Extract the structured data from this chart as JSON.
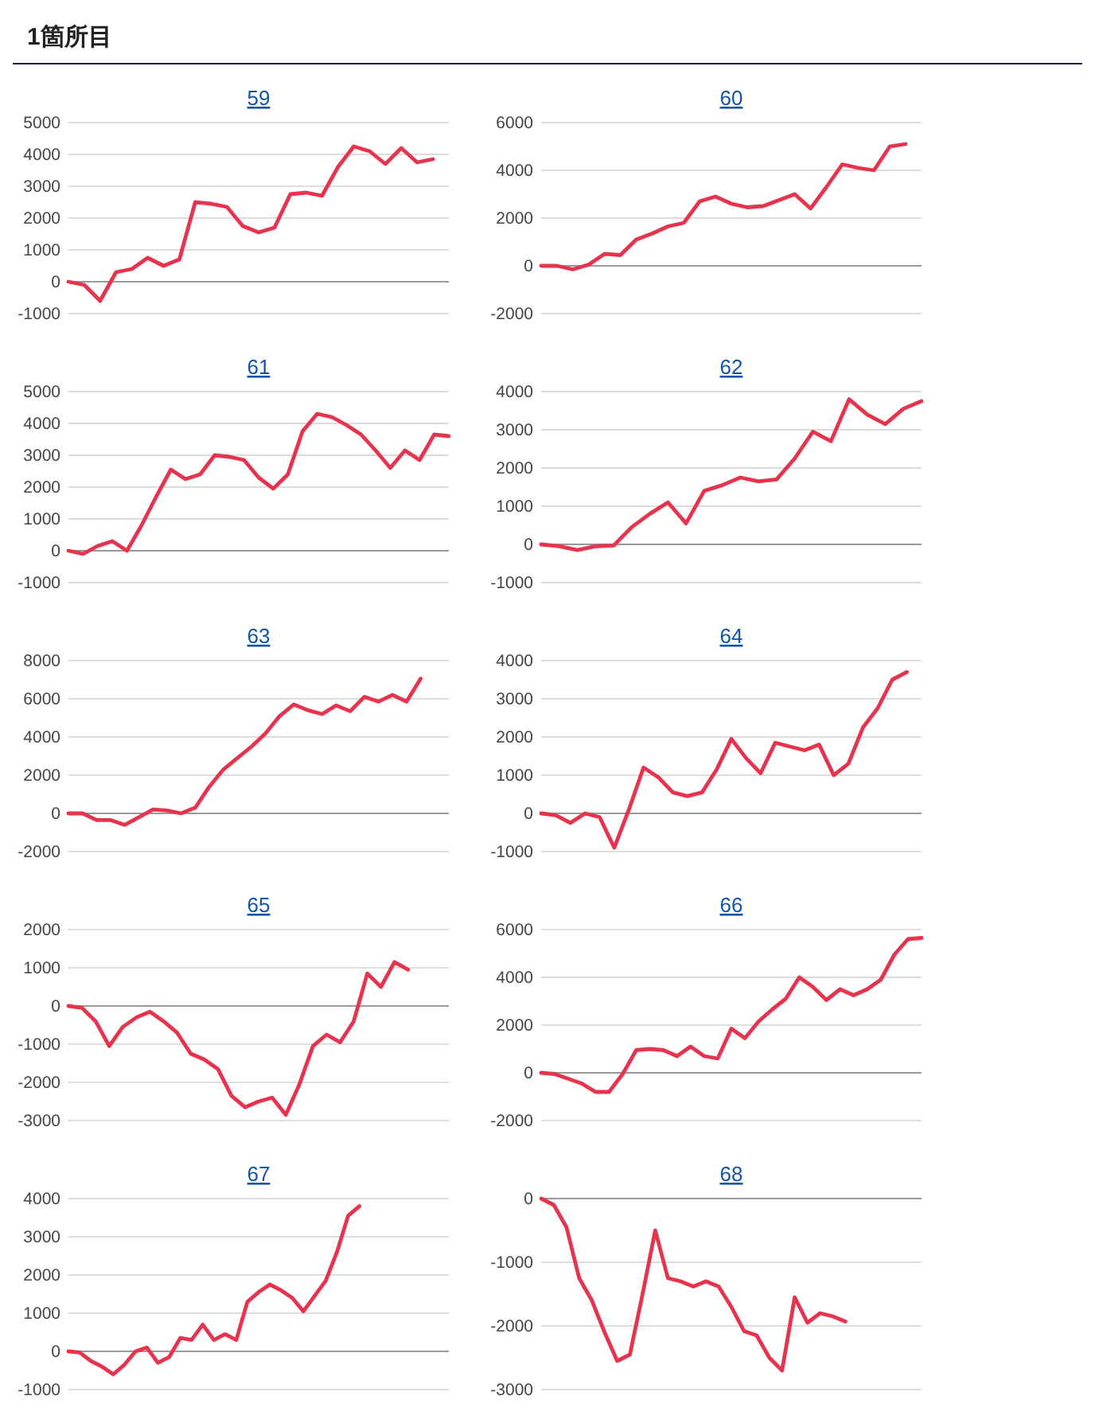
{
  "chart_data": [
    {
      "type": "other",
      "title": "1箇所目"
    },
    {
      "type": "line",
      "title": "59",
      "categories": [
        null,
        null,
        null,
        null,
        null,
        null,
        null,
        null,
        null,
        null,
        null,
        null,
        null,
        null,
        null,
        null,
        null,
        null,
        null,
        null,
        null,
        null,
        null,
        null,
        null
      ],
      "series": [
        {
          "color": "#e8334f",
          "values": [
            0,
            -100,
            -600,
            300,
            400,
            750,
            500,
            700,
            2500,
            2450,
            2350,
            1750,
            1550,
            1700,
            2750,
            2800,
            2700,
            3600,
            4250,
            4100,
            3700,
            4200,
            3750,
            3850,
            null
          ]
        }
      ],
      "ylim": [
        -1000,
        5000
      ],
      "yticks": [
        -1000,
        0,
        1000,
        2000,
        3000,
        4000,
        5000
      ],
      "grid": "y",
      "tick_labels": "y"
    },
    {
      "type": "line",
      "title": "60",
      "categories": [
        null,
        null,
        null,
        null,
        null,
        null,
        null,
        null,
        null,
        null,
        null,
        null,
        null,
        null,
        null,
        null,
        null,
        null,
        null,
        null,
        null,
        null,
        null,
        null,
        null
      ],
      "series": [
        {
          "color": "#e8334f",
          "values": [
            0,
            0,
            -150,
            50,
            500,
            450,
            1100,
            1350,
            1650,
            1800,
            2700,
            2900,
            2600,
            2450,
            2500,
            2750,
            3000,
            2400,
            3300,
            4250,
            4100,
            4000,
            5000,
            5100,
            null
          ]
        }
      ],
      "ylim": [
        -2000,
        6000
      ],
      "yticks": [
        -2000,
        0,
        2000,
        4000,
        6000
      ],
      "grid": "y",
      "tick_labels": "y"
    },
    {
      "type": "line",
      "title": "61",
      "categories": [
        null,
        null,
        null,
        null,
        null,
        null,
        null,
        null,
        null,
        null,
        null,
        null,
        null,
        null,
        null,
        null,
        null,
        null,
        null,
        null,
        null,
        null,
        null,
        null,
        null,
        null,
        null
      ],
      "series": [
        {
          "color": "#e8334f",
          "values": [
            0,
            -100,
            150,
            300,
            0,
            800,
            1700,
            2550,
            2250,
            2400,
            3000,
            2950,
            2850,
            2300,
            1950,
            2400,
            3750,
            4300,
            4200,
            3950,
            3650,
            3150,
            2600,
            3150,
            2850,
            3650,
            3600
          ]
        }
      ],
      "ylim": [
        -1000,
        5000
      ],
      "yticks": [
        -1000,
        0,
        1000,
        2000,
        3000,
        4000,
        5000
      ],
      "grid": "y",
      "tick_labels": "y"
    },
    {
      "type": "line",
      "title": "62",
      "categories": [
        null,
        null,
        null,
        null,
        null,
        null,
        null,
        null,
        null,
        null,
        null,
        null,
        null,
        null,
        null,
        null,
        null,
        null,
        null,
        null,
        null,
        null
      ],
      "series": [
        {
          "color": "#e8334f",
          "values": [
            0,
            -50,
            -150,
            -50,
            -30,
            450,
            800,
            1100,
            550,
            1400,
            1550,
            1750,
            1650,
            1700,
            2250,
            2950,
            2700,
            3800,
            3400,
            3150,
            3550,
            3750
          ]
        }
      ],
      "ylim": [
        -1000,
        4000
      ],
      "yticks": [
        -1000,
        0,
        1000,
        2000,
        3000,
        4000
      ],
      "grid": "y",
      "tick_labels": "y"
    },
    {
      "type": "line",
      "title": "63",
      "categories": [
        null,
        null,
        null,
        null,
        null,
        null,
        null,
        null,
        null,
        null,
        null,
        null,
        null,
        null,
        null,
        null,
        null,
        null,
        null,
        null,
        null,
        null,
        null,
        null,
        null,
        null,
        null,
        null
      ],
      "series": [
        {
          "color": "#e8334f",
          "values": [
            0,
            0,
            -350,
            -350,
            -600,
            -200,
            200,
            150,
            0,
            300,
            1400,
            2300,
            2900,
            3500,
            4200,
            5100,
            5700,
            5400,
            5200,
            5650,
            5350,
            6100,
            5850,
            6200,
            5850,
            7050,
            null,
            null
          ]
        }
      ],
      "ylim": [
        -2000,
        8000
      ],
      "yticks": [
        -2000,
        0,
        2000,
        4000,
        6000,
        8000
      ],
      "grid": "y",
      "tick_labels": "y"
    },
    {
      "type": "line",
      "title": "64",
      "categories": [
        null,
        null,
        null,
        null,
        null,
        null,
        null,
        null,
        null,
        null,
        null,
        null,
        null,
        null,
        null,
        null,
        null,
        null,
        null,
        null,
        null,
        null,
        null,
        null,
        null,
        null,
        null
      ],
      "series": [
        {
          "color": "#e8334f",
          "values": [
            0,
            -50,
            -250,
            0,
            -100,
            -900,
            100,
            1200,
            950,
            550,
            450,
            550,
            1150,
            1950,
            1450,
            1050,
            1850,
            1750,
            1650,
            1800,
            1000,
            1300,
            2250,
            2750,
            3500,
            3700,
            null
          ]
        }
      ],
      "ylim": [
        -1000,
        4000
      ],
      "yticks": [
        -1000,
        0,
        1000,
        2000,
        3000,
        4000
      ],
      "grid": "y",
      "tick_labels": "y"
    },
    {
      "type": "line",
      "title": "65",
      "categories": [
        null,
        null,
        null,
        null,
        null,
        null,
        null,
        null,
        null,
        null,
        null,
        null,
        null,
        null,
        null,
        null,
        null,
        null,
        null,
        null,
        null,
        null,
        null,
        null,
        null,
        null,
        null,
        null,
        null
      ],
      "series": [
        {
          "color": "#e8334f",
          "values": [
            0,
            -50,
            -400,
            -1050,
            -550,
            -300,
            -150,
            -400,
            -700,
            -1250,
            -1400,
            -1650,
            -2350,
            -2650,
            -2500,
            -2400,
            -2850,
            -2050,
            -1050,
            -750,
            -950,
            -400,
            850,
            500,
            1150,
            950,
            null,
            null,
            null
          ]
        }
      ],
      "ylim": [
        -3000,
        2000
      ],
      "yticks": [
        -3000,
        -2000,
        -1000,
        0,
        1000,
        2000
      ],
      "grid": "y",
      "tick_labels": "y"
    },
    {
      "type": "line",
      "title": "66",
      "categories": [
        null,
        null,
        null,
        null,
        null,
        null,
        null,
        null,
        null,
        null,
        null,
        null,
        null,
        null,
        null,
        null,
        null,
        null,
        null,
        null,
        null,
        null,
        null,
        null,
        null,
        null,
        null,
        null,
        null
      ],
      "series": [
        {
          "color": "#e8334f",
          "values": [
            0,
            -50,
            -250,
            -450,
            -800,
            -800,
            -50,
            950,
            1000,
            950,
            700,
            1100,
            700,
            600,
            1850,
            1450,
            2150,
            2650,
            3100,
            4000,
            3600,
            3050,
            3500,
            3250,
            3500,
            3900,
            4950,
            5600,
            5650
          ]
        }
      ],
      "ylim": [
        -2000,
        6000
      ],
      "yticks": [
        -2000,
        0,
        2000,
        4000,
        6000
      ],
      "grid": "y",
      "tick_labels": "y"
    },
    {
      "type": "line",
      "title": "67",
      "categories": [
        null,
        null,
        null,
        null,
        null,
        null,
        null,
        null,
        null,
        null,
        null,
        null,
        null,
        null,
        null,
        null,
        null,
        null,
        null,
        null,
        null,
        null,
        null,
        null,
        null,
        null,
        null,
        null,
        null,
        null,
        null,
        null,
        null,
        null,
        null
      ],
      "series": [
        {
          "color": "#e8334f",
          "values": [
            0,
            -30,
            -250,
            -400,
            -600,
            -350,
            0,
            100,
            -300,
            -150,
            350,
            300,
            700,
            300,
            450,
            300,
            1300,
            1550,
            1750,
            1600,
            1400,
            1050,
            1450,
            1850,
            2600,
            3550,
            3800,
            null,
            null,
            null,
            null,
            null,
            null,
            null,
            null
          ]
        }
      ],
      "ylim": [
        -1000,
        4000
      ],
      "yticks": [
        -1000,
        0,
        1000,
        2000,
        3000,
        4000
      ],
      "grid": "y",
      "tick_labels": "y"
    },
    {
      "type": "line",
      "title": "68",
      "categories": [
        null,
        null,
        null,
        null,
        null,
        null,
        null,
        null,
        null,
        null,
        null,
        null,
        null,
        null,
        null,
        null,
        null,
        null,
        null,
        null,
        null,
        null,
        null,
        null,
        null,
        null,
        null,
        null,
        null,
        null,
        null
      ],
      "series": [
        {
          "color": "#e8334f",
          "values": [
            0,
            -100,
            -450,
            -1250,
            -1600,
            -2100,
            -2550,
            -2450,
            -1500,
            -500,
            -1250,
            -1300,
            -1380,
            -1300,
            -1380,
            -1700,
            -2080,
            -2150,
            -2500,
            -2700,
            -1550,
            -1950,
            -1800,
            -1850,
            -1930,
            null,
            null,
            null,
            null,
            null,
            null
          ]
        }
      ],
      "ylim": [
        -3000,
        0
      ],
      "yticks": [
        -3000,
        -2000,
        -1000,
        0
      ],
      "grid": "y",
      "tick_labels": "y"
    }
  ]
}
